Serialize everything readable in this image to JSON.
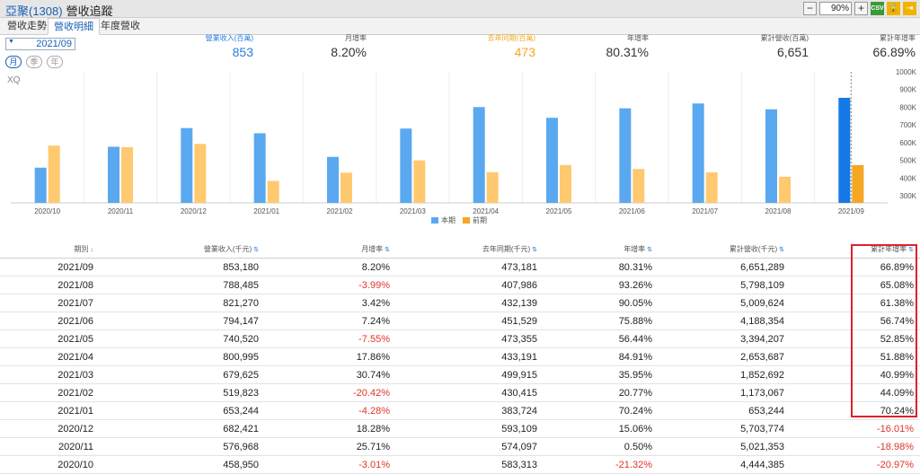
{
  "header": {
    "code": "亞聚(1308)",
    "title": "營收追蹤",
    "zoom": "90%",
    "csv_label": "CSV"
  },
  "tabs": [
    {
      "label": "營收走勢",
      "active": false
    },
    {
      "label": "營收明細",
      "active": true
    },
    {
      "label": "年度營收",
      "active": false
    }
  ],
  "controls": {
    "date": "2021/09",
    "periods": [
      {
        "label": "月",
        "active": true
      },
      {
        "label": "季",
        "active": false
      },
      {
        "label": "年",
        "active": false
      }
    ]
  },
  "summary": [
    {
      "label": "營業收入(百萬)",
      "value": "853",
      "style": "blue"
    },
    {
      "label": "月增率",
      "value": "8.20%",
      "style": ""
    },
    {
      "label": "去年同期(百萬)",
      "value": "473",
      "style": "orange"
    },
    {
      "label": "年增率",
      "value": "80.31%",
      "style": ""
    },
    {
      "label": "累計營收(百萬)",
      "value": "6,651",
      "style": ""
    },
    {
      "label": "累計年增率",
      "value": "66.89%",
      "style": ""
    }
  ],
  "watermark": "XQ",
  "colors": {
    "current": "#5aa9f0",
    "current_highlight": "#1478e6",
    "previous": "#ffc970",
    "previous_highlight": "#f5a623",
    "negative": "#e0342b",
    "highlight_box": "#e0202a"
  },
  "chart_data": {
    "type": "bar",
    "categories": [
      "2020/10",
      "2020/11",
      "2020/12",
      "2021/01",
      "2021/02",
      "2021/03",
      "2021/04",
      "2021/05",
      "2021/06",
      "2021/07",
      "2021/08",
      "2021/09"
    ],
    "series": [
      {
        "name": "本期",
        "values": [
          458950,
          576968,
          682421,
          653244,
          519823,
          679625,
          800995,
          740520,
          794147,
          821270,
          788485,
          853180
        ]
      },
      {
        "name": "前期",
        "values": [
          583313,
          574097,
          593109,
          383724,
          430415,
          499915,
          433191,
          473355,
          451529,
          432139,
          407986,
          473181
        ]
      }
    ],
    "ylim": [
      260000,
      1000000
    ],
    "yticks": [
      {
        "value": 300000,
        "label": "300K"
      },
      {
        "value": 400000,
        "label": "400K"
      },
      {
        "value": 500000,
        "label": "500K"
      },
      {
        "value": 600000,
        "label": "600K"
      },
      {
        "value": 700000,
        "label": "700K"
      },
      {
        "value": 800000,
        "label": "800K"
      },
      {
        "value": 900000,
        "label": "900K"
      },
      {
        "value": 1000000,
        "label": "1000K"
      }
    ],
    "legend": "bottom-center",
    "grid": false
  },
  "table": {
    "headers": [
      "期別",
      "營業收入(千元)",
      "月增率",
      "去年同期(千元)",
      "年增率",
      "累計營收(千元)",
      "累計年增率"
    ],
    "sort_marks": [
      "↓",
      "⇅",
      "⇅",
      "⇅",
      "⇅",
      "⇅",
      "⇅"
    ],
    "rows": [
      [
        "2021/09",
        "853,180",
        "8.20%",
        "473,181",
        "80.31%",
        "6,651,289",
        "66.89%"
      ],
      [
        "2021/08",
        "788,485",
        "-3.99%",
        "407,986",
        "93.26%",
        "5,798,109",
        "65.08%"
      ],
      [
        "2021/07",
        "821,270",
        "3.42%",
        "432,139",
        "90.05%",
        "5,009,624",
        "61.38%"
      ],
      [
        "2021/06",
        "794,147",
        "7.24%",
        "451,529",
        "75.88%",
        "4,188,354",
        "56.74%"
      ],
      [
        "2021/05",
        "740,520",
        "-7.55%",
        "473,355",
        "56.44%",
        "3,394,207",
        "52.85%"
      ],
      [
        "2021/04",
        "800,995",
        "17.86%",
        "433,191",
        "84.91%",
        "2,653,687",
        "51.88%"
      ],
      [
        "2021/03",
        "679,625",
        "30.74%",
        "499,915",
        "35.95%",
        "1,852,692",
        "40.99%"
      ],
      [
        "2021/02",
        "519,823",
        "-20.42%",
        "430,415",
        "20.77%",
        "1,173,067",
        "44.09%"
      ],
      [
        "2021/01",
        "653,244",
        "-4.28%",
        "383,724",
        "70.24%",
        "653,244",
        "70.24%"
      ],
      [
        "2020/12",
        "682,421",
        "18.28%",
        "593,109",
        "15.06%",
        "5,703,774",
        "-16.01%"
      ],
      [
        "2020/11",
        "576,968",
        "25.71%",
        "574,097",
        "0.50%",
        "5,021,353",
        "-18.98%"
      ],
      [
        "2020/10",
        "458,950",
        "-3.01%",
        "583,313",
        "-21.32%",
        "4,444,385",
        "-20.97%"
      ]
    ]
  }
}
